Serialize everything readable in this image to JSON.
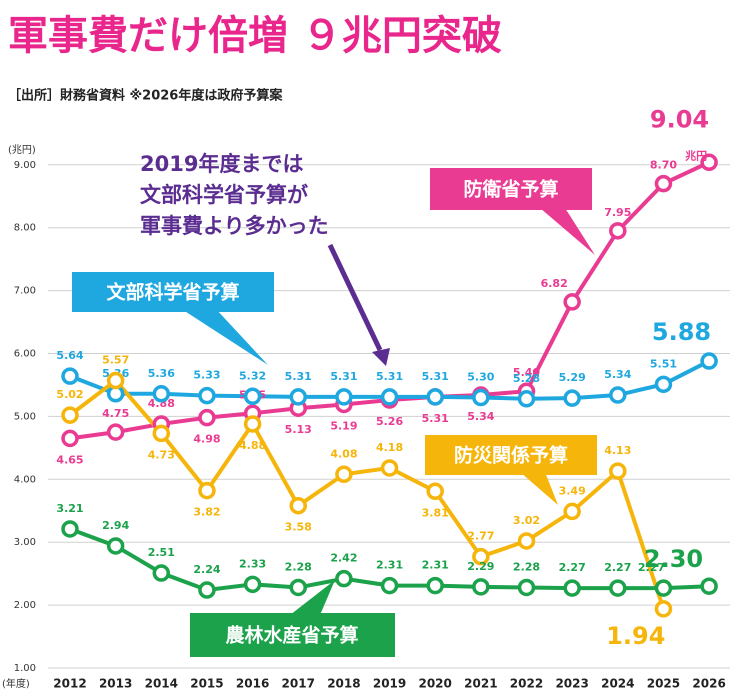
{
  "chart_data": {
    "type": "line",
    "title": "軍事費だけ倍増 ９兆円突破",
    "subtitle": "［出所］財務省資料 ※2026年度は政府予算案",
    "y_unit": "(兆円)",
    "x_unit": "(年度)",
    "annotation": [
      "2019年度までは",
      "文部科学省予算が",
      "軍事費より多かった"
    ],
    "last_value_unit": "兆円",
    "categories": [
      "2012",
      "2013",
      "2014",
      "2015",
      "2016",
      "2017",
      "2018",
      "2019",
      "2020",
      "2021",
      "2022",
      "2023",
      "2024",
      "2025",
      "2026"
    ],
    "ylim": [
      1,
      9.6
    ],
    "yticks": [
      {
        "value": 1,
        "label": "1.00"
      },
      {
        "value": 2,
        "label": "2.00"
      },
      {
        "value": 3,
        "label": "3.00"
      },
      {
        "value": 4,
        "label": "4.00"
      },
      {
        "value": 5,
        "label": "5.00"
      },
      {
        "value": 6,
        "label": "6.00"
      },
      {
        "value": 7,
        "label": "7.00"
      },
      {
        "value": 8,
        "label": "8.00"
      },
      {
        "value": 9,
        "label": "9.00"
      }
    ],
    "grid": true,
    "series": [
      {
        "name": "防衛省予算",
        "color": "#ea3b93",
        "values": [
          4.65,
          4.75,
          4.88,
          4.98,
          5.05,
          5.13,
          5.19,
          5.26,
          5.31,
          5.34,
          5.4,
          6.82,
          7.95,
          8.7,
          9.04
        ],
        "value_labels": [
          "4.65",
          "4.75",
          "4.88",
          "4.98",
          "5.05",
          "5.13",
          "5.19",
          "5.26",
          "5.31",
          "5.34",
          "5.40",
          "6.82",
          "7.95",
          "8.70",
          "9.04"
        ]
      },
      {
        "name": "文部科学省予算",
        "color": "#1fa8e0",
        "values": [
          5.64,
          5.36,
          5.36,
          5.33,
          5.32,
          5.31,
          5.31,
          5.31,
          5.31,
          5.3,
          5.28,
          5.29,
          5.34,
          5.51,
          5.88
        ],
        "value_labels": [
          "5.64",
          "5.36",
          "5.36",
          "5.33",
          "5.32",
          "5.31",
          "5.31",
          "5.31",
          "5.31",
          "5.30",
          "5.28",
          "5.29",
          "5.34",
          "5.51",
          "5.88"
        ]
      },
      {
        "name": "防災関係予算",
        "color": "#f5b50a",
        "values": [
          5.02,
          5.57,
          4.73,
          3.82,
          4.88,
          3.58,
          4.08,
          4.18,
          3.81,
          2.77,
          3.02,
          3.49,
          4.13,
          1.94,
          null
        ],
        "value_labels": [
          "5.02",
          "5.57",
          "4.73",
          "3.82",
          "4.88",
          "3.58",
          "4.08",
          "4.18",
          "3.81",
          "2.77",
          "3.02",
          "3.49",
          "4.13",
          "1.94",
          null
        ]
      },
      {
        "name": "農林水産省予算",
        "color": "#1ba24b",
        "values": [
          3.21,
          2.94,
          2.51,
          2.24,
          2.33,
          2.28,
          2.42,
          2.31,
          2.31,
          2.29,
          2.28,
          2.27,
          2.27,
          2.27,
          2.3
        ],
        "value_labels": [
          "3.21",
          "2.94",
          "2.51",
          "2.24",
          "2.33",
          "2.28",
          "2.42",
          "2.31",
          "2.31",
          "2.29",
          "2.28",
          "2.27",
          "2.27",
          "2.27",
          "2.30"
        ]
      }
    ]
  }
}
